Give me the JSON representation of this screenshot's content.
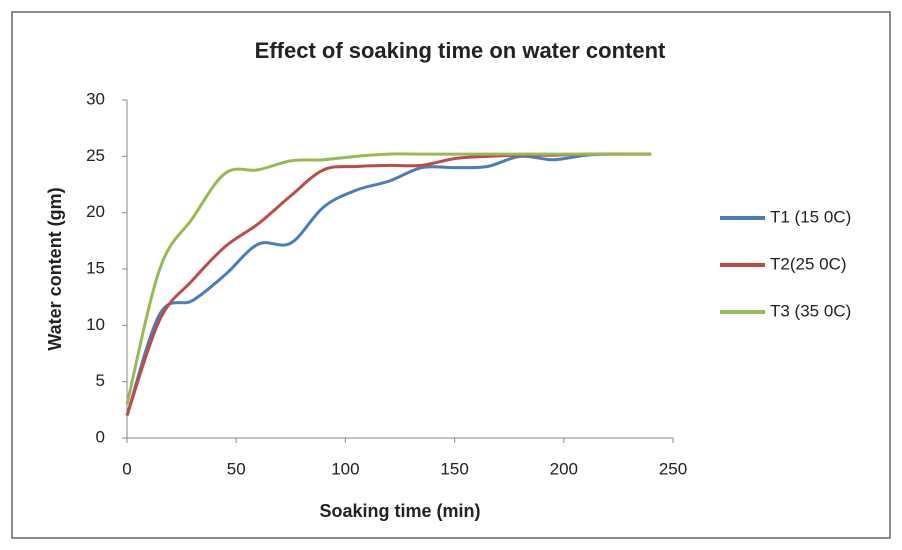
{
  "chart_data": {
    "type": "line",
    "title": "Effect of soaking time on water content",
    "x_label": "Soaking time (min)",
    "y_label": "Water content (gm)",
    "x": [
      0,
      15,
      30,
      45,
      60,
      75,
      90,
      105,
      120,
      135,
      150,
      165,
      180,
      195,
      210,
      225,
      240
    ],
    "series": [
      {
        "name": "T1 (15 0C)",
        "color": "#4a7ebb",
        "values": [
          2,
          11,
          12.2,
          14.5,
          17.2,
          17.3,
          20.5,
          22,
          22.8,
          24,
          24,
          24.1,
          25,
          24.7,
          25.1,
          25.2,
          25.2
        ]
      },
      {
        "name": "T2(25 0C)",
        "color": "#be4b48",
        "values": [
          2,
          10.5,
          14,
          17,
          19,
          21.5,
          23.8,
          24.1,
          24.2,
          24.2,
          24.8,
          25,
          25.1,
          25.1,
          25.2,
          25.2,
          25.2
        ]
      },
      {
        "name": "T3 (35 0C)",
        "color": "#98b954",
        "values": [
          3,
          15,
          19.5,
          23.5,
          23.8,
          24.6,
          24.7,
          25,
          25.2,
          25.2,
          25.2,
          25.2,
          25.2,
          25.2,
          25.2,
          25.2,
          25.2
        ]
      }
    ],
    "xlim": [
      0,
      250
    ],
    "xticks": [
      0,
      50,
      100,
      150,
      200,
      250
    ],
    "ylim": [
      0,
      30
    ],
    "yticks": [
      0,
      5,
      10,
      15,
      20,
      25,
      30
    ],
    "legend": "right"
  }
}
